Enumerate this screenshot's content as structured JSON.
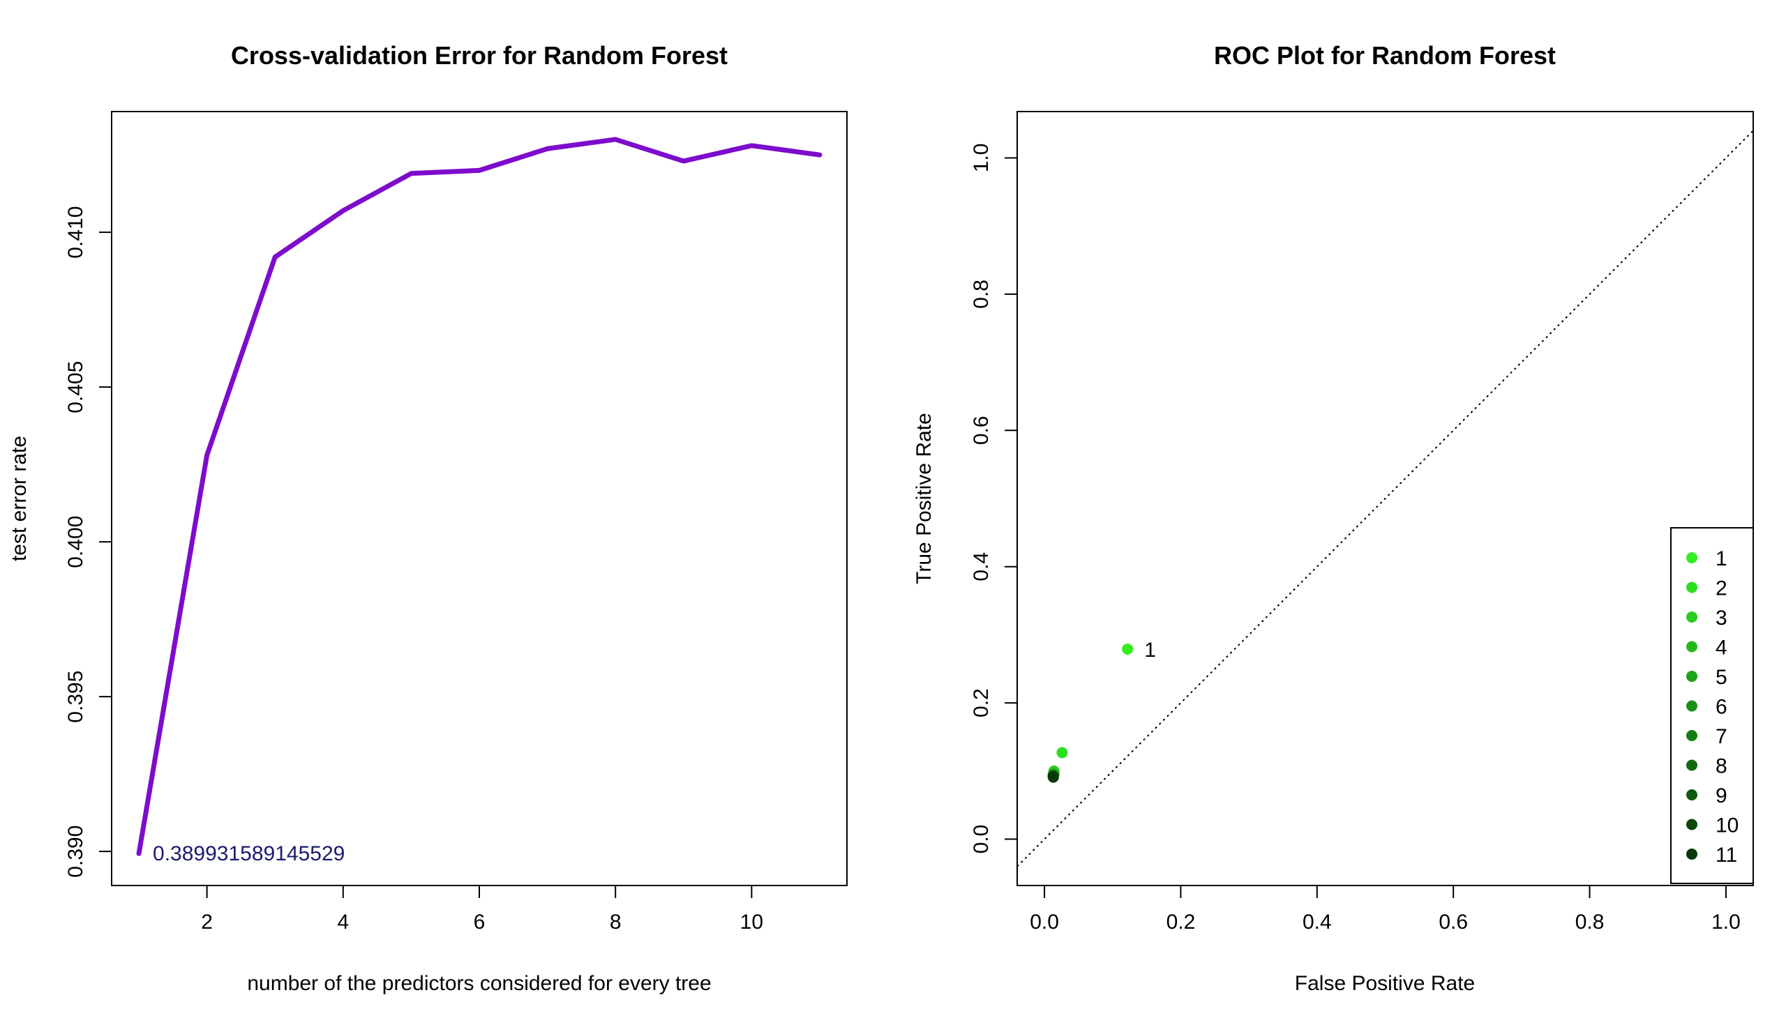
{
  "chart_data": [
    {
      "type": "line",
      "title": "Cross-validation Error for Random Forest",
      "xlabel": "number of the predictors considered for every tree",
      "ylabel": "test error rate",
      "x": [
        1,
        2,
        3,
        4,
        5,
        6,
        7,
        8,
        9,
        10,
        11
      ],
      "series": [
        {
          "values": [
            0.389932,
            0.4028,
            0.4092,
            0.4107,
            0.4119,
            0.412,
            0.4127,
            0.413,
            0.4123,
            0.4128,
            0.4125
          ]
        }
      ],
      "xlim": [
        0.6,
        11.4
      ],
      "ylim": [
        0.3889,
        0.4139
      ],
      "xticks": [
        2,
        4,
        6,
        8,
        10
      ],
      "xtick_labels": [
        "2",
        "4",
        "6",
        "8",
        "10"
      ],
      "yticks": [
        0.39,
        0.395,
        0.4,
        0.405,
        0.41
      ],
      "ytick_labels": [
        "0.390",
        "0.395",
        "0.400",
        "0.405",
        "0.410"
      ],
      "annotations": [
        {
          "x": 1,
          "y": 0.389932,
          "text": "0.389931589145529",
          "color": "#1a1a6e"
        }
      ],
      "line_color": "#7d0ccc",
      "grid": false
    },
    {
      "type": "scatter",
      "title": "ROC Plot for Random Forest",
      "xlabel": "False Positive Rate",
      "ylabel": "True Positive Rate",
      "xlim": [
        -0.04,
        1.04
      ],
      "ylim": [
        -0.068,
        1.068
      ],
      "xticks": [
        0.0,
        0.2,
        0.4,
        0.6,
        0.8,
        1.0
      ],
      "xtick_labels": [
        "0.0",
        "0.2",
        "0.4",
        "0.6",
        "0.8",
        "1.0"
      ],
      "yticks": [
        0.0,
        0.2,
        0.4,
        0.6,
        0.8,
        1.0
      ],
      "ytick_labels": [
        "0.0",
        "0.2",
        "0.4",
        "0.6",
        "0.8",
        "1.0"
      ],
      "points": [
        {
          "label": "1",
          "x": 0.122,
          "y": 0.279,
          "color": "#33ee22"
        },
        {
          "label": "2",
          "x": 0.026,
          "y": 0.127,
          "color": "#2de01f"
        },
        {
          "label": "3",
          "x": 0.014,
          "y": 0.1,
          "color": "#28cc1e"
        },
        {
          "label": "4",
          "x": 0.014,
          "y": 0.096,
          "color": "#24b81c"
        },
        {
          "label": "5",
          "x": 0.013,
          "y": 0.095,
          "color": "#1fa31a"
        },
        {
          "label": "6",
          "x": 0.013,
          "y": 0.094,
          "color": "#1a9016"
        },
        {
          "label": "7",
          "x": 0.013,
          "y": 0.093,
          "color": "#167d13"
        },
        {
          "label": "8",
          "x": 0.013,
          "y": 0.093,
          "color": "#126a10"
        },
        {
          "label": "9",
          "x": 0.013,
          "y": 0.092,
          "color": "#0e590d"
        },
        {
          "label": "10",
          "x": 0.013,
          "y": 0.092,
          "color": "#0a490a"
        },
        {
          "label": "11",
          "x": 0.013,
          "y": 0.091,
          "color": "#063a06"
        }
      ],
      "point_annotations": [
        {
          "x": 0.122,
          "y": 0.279,
          "text": "1"
        }
      ],
      "reference_line": {
        "from": [
          0,
          0
        ],
        "to": [
          1,
          1
        ],
        "style": "dotted"
      },
      "legend": {
        "placement": "bottom-right",
        "entries": [
          "1",
          "2",
          "3",
          "4",
          "5",
          "6",
          "7",
          "8",
          "9",
          "10",
          "11"
        ]
      },
      "grid": false
    }
  ]
}
